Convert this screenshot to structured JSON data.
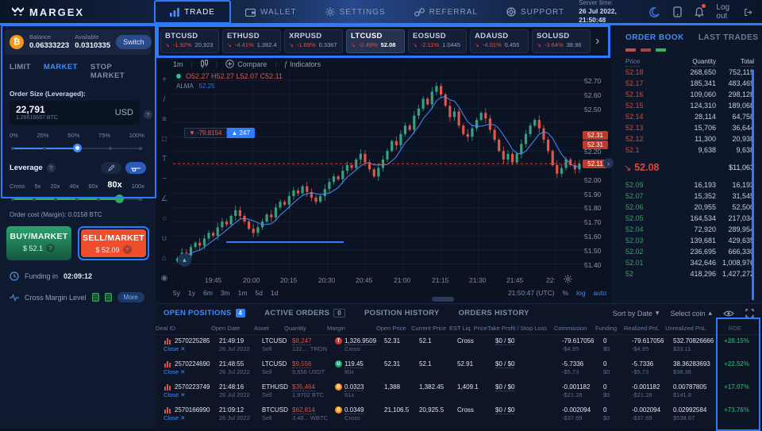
{
  "topbar": {
    "logo": "MARGEX",
    "nav": [
      {
        "id": "trade",
        "label": "TRADE",
        "active": true
      },
      {
        "id": "wallet",
        "label": "WALLET",
        "active": false
      },
      {
        "id": "settings",
        "label": "SETTINGS",
        "active": false
      },
      {
        "id": "referral",
        "label": "REFERRAL",
        "active": false
      },
      {
        "id": "support",
        "label": "SUPPORT",
        "active": false
      }
    ],
    "server_time_label": "Server time:",
    "server_time": "26 Jul 2022, 21:50:48",
    "logout_label": "Log out"
  },
  "tickers": [
    {
      "symbol": "BTCUSD",
      "change": "-1.92%",
      "price": "20,923",
      "selected": false
    },
    {
      "symbol": "ETHUSD",
      "change": "-4.41%",
      "price": "1,382.4",
      "selected": false
    },
    {
      "symbol": "XRPUSD",
      "change": "-1.69%",
      "price": "0.3367",
      "selected": false
    },
    {
      "symbol": "LTCUSD",
      "change": "-2.49%",
      "price": "52.08",
      "selected": true
    },
    {
      "symbol": "EOSUSD",
      "change": "-2.11%",
      "price": "1.0445",
      "selected": false
    },
    {
      "symbol": "ADAUSD",
      "change": "-4.01%",
      "price": "0.455",
      "selected": false
    },
    {
      "symbol": "SOLUSD",
      "change": "-3.64%",
      "price": "38.96",
      "selected": false
    }
  ],
  "order_panel": {
    "balance_label": "Balance",
    "balance": "0.06333223",
    "available_label": "Available",
    "available": "0.0310335",
    "switch_label": "Switch",
    "tabs": [
      "LIMIT",
      "MARKET",
      "STOP MARKET"
    ],
    "active_tab": "MARKET",
    "order_size_label": "Order Size (Leveraged):",
    "order_size": "22,791",
    "order_size_sub": "1.26616667 BTC",
    "currency": "USD",
    "help_icon": "?",
    "percent_labels": [
      "0%",
      "25%",
      "50%",
      "75%",
      "100%"
    ],
    "percent_value": 50,
    "leverage_label": "Leverage",
    "leverage_labels": [
      "Cross",
      "5x",
      "20x",
      "40x",
      "60x",
      "80x",
      "100x"
    ],
    "leverage_active": "80x",
    "order_cost": "Order cost (Margin): 0.0158 BTC",
    "buy_label": "BUY/MARKET",
    "buy_price": "$ 52.1",
    "sell_label": "SELL/MARKET",
    "sell_price": "$ 52.09",
    "funding_label": "Funding in",
    "funding_time": "02:09:12",
    "margin_level_label": "Cross Margin Level",
    "more_label": "More"
  },
  "chart": {
    "toolbar": {
      "timeframe": "1m",
      "compare_label": "Compare",
      "indicators_label": "Indicators"
    },
    "ohlc": "O52.27 H52.27 L52.07 C52.11",
    "indicator_name": "ALMA",
    "indicator_value": "52.25",
    "position_badge": {
      "pnl": "-79.8154",
      "qty": "247"
    },
    "price_tags": [
      "52.31",
      "52.31"
    ],
    "current_price": "52.11",
    "axis_prices": [
      "52.70",
      "52.60",
      "52.50",
      "52.20",
      "52.00",
      "51.90",
      "51.80",
      "51.70",
      "51.60",
      "51.50",
      "51.40"
    ],
    "times": [
      "19:45",
      "20:00",
      "20:15",
      "20:30",
      "20:45",
      "21:00",
      "21:15",
      "21:30",
      "21:45",
      "22:"
    ],
    "ranges": [
      "5y",
      "1y",
      "6m",
      "3m",
      "1m",
      "5d",
      "1d"
    ],
    "clock": "21:50:47 (UTC)",
    "percent_btn": "%",
    "log_btn": "log",
    "auto_btn": "auto",
    "toolbar_icons": [
      "crosshair",
      "trend-line",
      "fib-retracement",
      "rectangle",
      "text",
      "pattern",
      "angle",
      "zoom",
      "magnet",
      "lock",
      "eye"
    ],
    "closes": [
      51.44,
      51.48,
      51.46,
      51.52,
      51.55,
      51.53,
      51.58,
      51.62,
      51.6,
      51.66,
      51.7,
      51.68,
      51.74,
      51.78,
      51.74,
      51.7,
      51.65,
      51.62,
      51.66,
      51.7,
      51.75,
      51.73,
      51.8,
      51.84,
      51.82,
      51.88,
      51.92,
      51.9,
      51.95,
      51.91,
      51.87,
      51.84,
      51.88,
      51.93,
      51.98,
      52.02,
      52.0,
      52.06,
      52.1,
      52.08,
      52.14,
      52.18,
      52.12,
      52.07,
      52.02,
      52.08,
      52.14,
      52.2,
      52.27,
      52.24,
      52.32,
      52.38,
      52.35,
      52.45,
      52.5,
      52.57,
      52.53,
      52.62,
      52.66,
      52.6,
      52.52,
      52.44,
      52.48,
      52.38,
      52.32,
      52.3,
      52.36,
      52.42,
      52.47,
      52.43,
      52.35,
      52.28,
      52.2,
      52.14,
      52.18,
      52.12,
      52.18,
      52.25,
      52.32,
      52.38,
      52.42,
      52.36,
      52.28,
      52.2,
      52.1,
      52.04,
      52.08,
      52.14,
      52.1,
      52.07,
      52.11
    ]
  },
  "order_book": {
    "tabs": [
      "ORDER BOOK",
      "LAST TRADES"
    ],
    "active_tab": "ORDER BOOK",
    "headers": [
      "Price",
      "Quantity",
      "Total"
    ],
    "asks": [
      [
        "52.18",
        "268,650",
        "752,119"
      ],
      [
        "52.17",
        "185,341",
        "483,469"
      ],
      [
        "52.16",
        "109,060",
        "298,128"
      ],
      [
        "52.15",
        "124,310",
        "189,068"
      ],
      [
        "52.14",
        "28,114",
        "64,758"
      ],
      [
        "52.13",
        "15,706",
        "36,644"
      ],
      [
        "52.12",
        "11,300",
        "20,938"
      ],
      [
        "52.1",
        "9,638",
        "9,638"
      ]
    ],
    "mid": {
      "price": "52.08",
      "total": "$11,063"
    },
    "bids": [
      [
        "52.09",
        "16,193",
        "16,193"
      ],
      [
        "52.07",
        "15,352",
        "31,545"
      ],
      [
        "52.06",
        "20,955",
        "52,500"
      ],
      [
        "52.05",
        "164,534",
        "217,034"
      ],
      [
        "52.04",
        "72,920",
        "289,954"
      ],
      [
        "52.03",
        "139,681",
        "429,635"
      ],
      [
        "52.02",
        "236,695",
        "666,330"
      ],
      [
        "52.01",
        "342,646",
        "1,008,976"
      ],
      [
        "52",
        "418,296",
        "1,427,272"
      ]
    ]
  },
  "positions": {
    "tabs": [
      {
        "label": "OPEN POSITIONS",
        "badge": "4",
        "active": true
      },
      {
        "label": "ACTIVE ORDERS",
        "badge": "0",
        "active": false
      },
      {
        "label": "POSITION HISTORY",
        "badge": "",
        "active": false
      },
      {
        "label": "ORDERS HISTORY",
        "badge": "",
        "active": false
      }
    ],
    "sort_label": "Sort by Date",
    "coin_label": "Select coin",
    "close_label": "Close",
    "columns": [
      "Deal ID",
      "Open Date",
      "Asset",
      "Quantity",
      "Margin",
      "Open Price",
      "Current Price",
      "EST Liq. Price",
      "Take Profit / Stop Loss",
      "Commission",
      "Funding",
      "Realized PnL",
      "Unrealized PnL",
      "ROE"
    ],
    "rows": [
      {
        "deal": "2570225285",
        "time": "21:49:19",
        "date": "26 Jul 2022",
        "asset": "LTCUSD",
        "side": "Sell",
        "qty": "$8,247",
        "qty_sub": "132.... TRON",
        "margin": "1,326.9509",
        "margin_sub": "Cross",
        "margin_coin": "TRX",
        "open": "52.31",
        "current": "52.1",
        "liq": "Cross",
        "tpsl": "$0 / $0",
        "comm": "-79.617056",
        "comm_sub": "-$4.95",
        "funding": "0",
        "funding_sub": "$0",
        "rpnl": "-79.617056",
        "rpnl_sub": "-$4.95",
        "upnl": "532.70826666",
        "upnl_sub": "$33.11",
        "roe": "+28.15%"
      },
      {
        "deal": "2570224690",
        "time": "21:48:55",
        "date": "26 Jul 2022",
        "asset": "LTCUSD",
        "side": "Sell",
        "qty": "$9,556",
        "qty_sub": "9,556 USDT",
        "margin": "119.45",
        "margin_sub": "80x",
        "margin_coin": "USDT",
        "open": "52.31",
        "current": "52.1",
        "liq": "52.91",
        "tpsl": "$0 / $0",
        "comm": "-5.7336",
        "comm_sub": "-$5.73",
        "funding": "0",
        "funding_sub": "$0",
        "rpnl": "-5.7336",
        "rpnl_sub": "-$5.73",
        "upnl": "38.36283693",
        "upnl_sub": "$38.36",
        "roe": "+22.52%"
      },
      {
        "deal": "2570223749",
        "time": "21:48:16",
        "date": "26 Jul 2022",
        "asset": "ETHUSD",
        "side": "Sell",
        "qty": "$35,464",
        "qty_sub": "1.9702 BTC",
        "margin": "0.0323",
        "margin_sub": "61x",
        "margin_coin": "BTC",
        "open": "1,388",
        "current": "1,382.45",
        "liq": "1,409.1",
        "tpsl": "$0 / $0",
        "comm": "-0.001182",
        "comm_sub": "-$21.28",
        "funding": "0",
        "funding_sub": "$0",
        "rpnl": "-0.001182",
        "rpnl_sub": "-$21.28",
        "upnl": "0.00787805",
        "upnl_sub": "$141.8",
        "roe": "+17.07%"
      },
      {
        "deal": "2570166990",
        "time": "21:09:12",
        "date": "26 Jul 2022",
        "asset": "BTCUSD",
        "side": "Sell",
        "qty": "$62,814",
        "qty_sub": "3.48... WBTC",
        "margin": "0.0349",
        "margin_sub": "Cross",
        "margin_coin": "BTC",
        "open": "21,106.5",
        "current": "20,925.5",
        "liq": "Cross",
        "tpsl": "$0 / $0",
        "comm": "-0.002094",
        "comm_sub": "-$37.69",
        "funding": "0",
        "funding_sub": "$0",
        "rpnl": "-0.002094",
        "rpnl_sub": "-$37.69",
        "upnl": "0.02992584",
        "upnl_sub": "$538.67",
        "roe": "+73.76%"
      }
    ]
  },
  "colors": {
    "accent_blue": "#2b7bff",
    "link_blue": "#3e8bff",
    "ask_red": "#c74e41",
    "bid_green": "#3f9e67",
    "candle_up": "#34a183",
    "candle_down": "#e25549",
    "sell_orange": "#ee4e2b",
    "buy_green": "#2aa36b",
    "tag_red": "#c03a2a"
  }
}
